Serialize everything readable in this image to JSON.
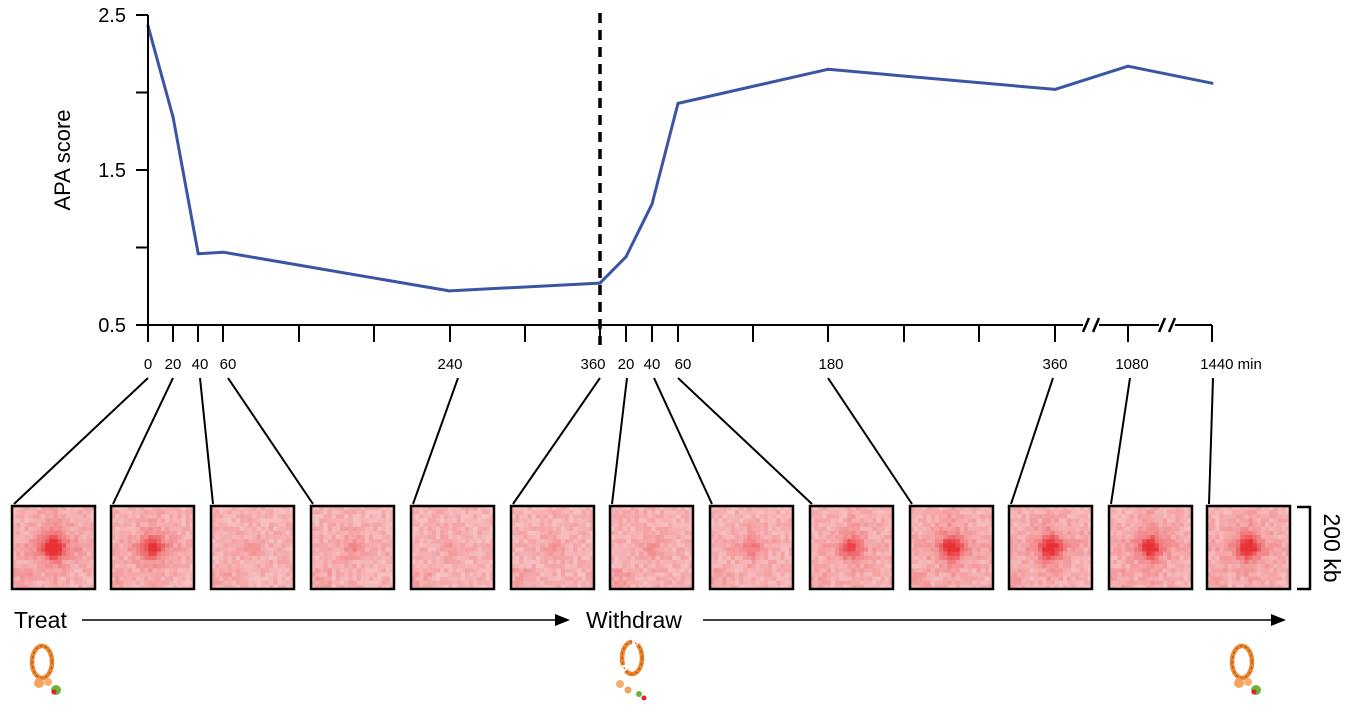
{
  "chart_data": {
    "type": "line",
    "ylabel": "APA score",
    "ylim": [
      0.5,
      2.5
    ],
    "yticks": [
      "0.5",
      "1.5",
      "2.5"
    ],
    "x_labels": [
      "0",
      "20",
      "40",
      "60",
      "240",
      "360",
      "20",
      "40",
      "60",
      "180",
      "360",
      "1080",
      "1440 min"
    ],
    "series": [
      {
        "color": "#3a55a4",
        "points": [
          {
            "phase": "treat",
            "minutes": 0,
            "apa": 2.43
          },
          {
            "phase": "treat",
            "minutes": 20,
            "apa": 1.84
          },
          {
            "phase": "treat",
            "minutes": 40,
            "apa": 0.96
          },
          {
            "phase": "treat",
            "minutes": 60,
            "apa": 0.97
          },
          {
            "phase": "treat",
            "minutes": 240,
            "apa": 0.72
          },
          {
            "phase": "treat",
            "minutes": 360,
            "apa": 0.77
          },
          {
            "phase": "withdraw",
            "minutes": 0,
            "apa": 0.77
          },
          {
            "phase": "withdraw",
            "minutes": 20,
            "apa": 0.94
          },
          {
            "phase": "withdraw",
            "minutes": 40,
            "apa": 1.28
          },
          {
            "phase": "withdraw",
            "minutes": 60,
            "apa": 1.93
          },
          {
            "phase": "withdraw",
            "minutes": 180,
            "apa": 2.15
          },
          {
            "phase": "withdraw",
            "minutes": 360,
            "apa": 2.02
          },
          {
            "phase": "withdraw",
            "minutes": 1080,
            "apa": 2.17
          },
          {
            "phase": "withdraw",
            "minutes": 1440,
            "apa": 2.06
          }
        ]
      }
    ],
    "divider_label": "360",
    "axis_breaks": [
      "360-1080",
      "1080-1440"
    ]
  },
  "heatmaps": {
    "peak_strength": [
      0.95,
      0.7,
      0.15,
      0.2,
      0.1,
      0.12,
      0.15,
      0.3,
      0.55,
      0.85,
      0.85,
      0.8,
      0.85
    ],
    "scale_label": "200 kb",
    "color": "#e8333c"
  },
  "timeline": {
    "treat_label": "Treat",
    "withdraw_label": "Withdraw"
  }
}
